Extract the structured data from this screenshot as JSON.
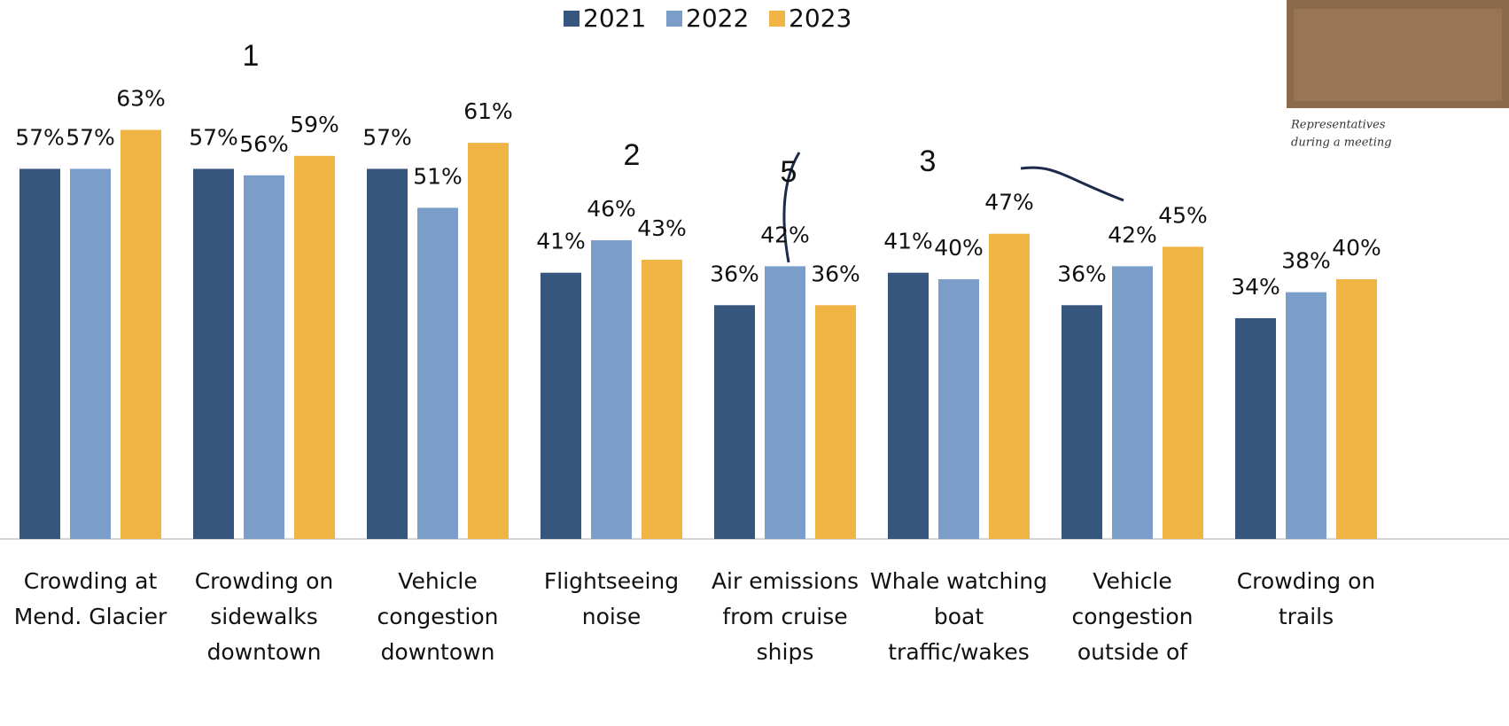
{
  "chart_data": {
    "type": "bar",
    "categories": [
      [
        "Crowding at",
        "Mend. Glacier"
      ],
      [
        "Crowding on",
        "sidewalks",
        "downtown"
      ],
      [
        "Vehicle",
        "congestion",
        "downtown"
      ],
      [
        "Flightseeing",
        "noise"
      ],
      [
        "Air emissions",
        "from cruise",
        "ships"
      ],
      [
        "Whale watching",
        "boat",
        "traffic/wakes"
      ],
      [
        "Vehicle",
        "congestion",
        "outside of"
      ],
      [
        "Crowding on",
        "trails"
      ]
    ],
    "series": [
      {
        "name": "2021",
        "color": "#36567e",
        "values": [
          57,
          57,
          57,
          41,
          36,
          41,
          36,
          34
        ],
        "value_labels": [
          "57%",
          "57%",
          "57%",
          "41%",
          "36%",
          "41%",
          "36%",
          "34%"
        ]
      },
      {
        "name": "2022",
        "color": "#7a9dca",
        "values": [
          57,
          56,
          51,
          46,
          42,
          40,
          42,
          38
        ],
        "value_labels": [
          "57%",
          "56%",
          "51%",
          "46%",
          "42%",
          "40%",
          "42%",
          "38%"
        ]
      },
      {
        "name": "2023",
        "color": "#efb443",
        "values": [
          63,
          59,
          61,
          43,
          36,
          47,
          45,
          40
        ],
        "value_labels": [
          "63%",
          "59%",
          "61%",
          "43%",
          "36%",
          "47%",
          "45%",
          "40%"
        ]
      }
    ],
    "ylim": [
      0,
      83
    ],
    "legend": "top",
    "annotations": [
      "1",
      "2",
      "5",
      "3"
    ],
    "photo_caption": [
      "Representatives",
      "during a meeting"
    ]
  }
}
